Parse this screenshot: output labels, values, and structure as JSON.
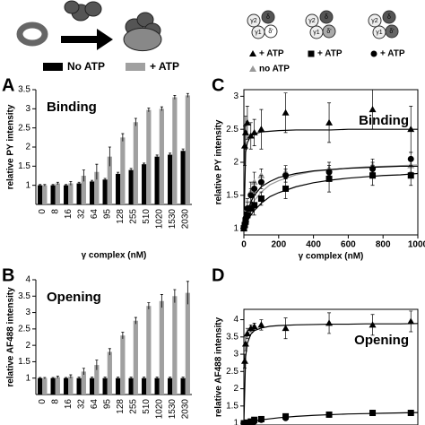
{
  "diagram": {
    "subunits": [
      "δ",
      "γ2",
      "γ1",
      "δ'"
    ],
    "legend": [
      "+ ATP",
      "no ATP",
      "+ ATP",
      "+ ATP"
    ]
  },
  "chart_data": [
    {
      "type": "bar",
      "panel": "A",
      "annotation": "Binding",
      "x_label": "γ complex (nM)",
      "y_label": "relative PY intensity",
      "categories": [
        "0",
        "8",
        "16",
        "32",
        "64",
        "95",
        "128",
        "255",
        "510",
        "1020",
        "1530",
        "2030"
      ],
      "series": [
        {
          "name": "No ATP",
          "color": "#000000",
          "values": [
            1,
            1,
            1,
            1.05,
            1.1,
            1.15,
            1.3,
            1.4,
            1.55,
            1.75,
            1.8,
            1.9
          ],
          "errors": [
            0.02,
            0.02,
            0.02,
            0.03,
            0.03,
            0.03,
            0.04,
            0.04,
            0.03,
            0.04,
            0.04,
            0.05
          ]
        },
        {
          "name": "+ ATP",
          "color": "#a0a0a0",
          "values": [
            1,
            1.05,
            1.05,
            1.25,
            1.35,
            1.75,
            2.25,
            2.65,
            2.97,
            3.0,
            3.3,
            3.35
          ],
          "errors": [
            0.02,
            0.03,
            0.05,
            0.15,
            0.2,
            0.25,
            0.1,
            0.1,
            0.05,
            0.05,
            0.05,
            0.05
          ]
        }
      ],
      "ylim": [
        0.5,
        3.5
      ],
      "yticks": [
        1,
        1.5,
        2,
        2.5,
        3,
        3.5
      ]
    },
    {
      "type": "bar",
      "panel": "B",
      "annotation": "Opening",
      "y_label": "relative AF488 intensity",
      "categories": [
        "0",
        "8",
        "16",
        "32",
        "64",
        "95",
        "128",
        "255",
        "510",
        "1020",
        "1530",
        "2030"
      ],
      "series": [
        {
          "name": "No ATP",
          "color": "#000000",
          "values": [
            1,
            1,
            1,
            1,
            1,
            1,
            1,
            1,
            1,
            1,
            1,
            1
          ],
          "errors": [
            0.02,
            0.02,
            0.02,
            0.03,
            0.03,
            0.03,
            0.03,
            0.03,
            0.03,
            0.03,
            0.03,
            0.03
          ]
        },
        {
          "name": "+ ATP",
          "color": "#a0a0a0",
          "values": [
            1,
            1.03,
            1.05,
            1.2,
            1.4,
            1.8,
            2.3,
            2.75,
            3.2,
            3.35,
            3.5,
            3.6
          ],
          "errors": [
            0.02,
            0.03,
            0.05,
            0.1,
            0.15,
            0.1,
            0.1,
            0.1,
            0.1,
            0.2,
            0.2,
            0.35
          ]
        }
      ],
      "ylim": [
        0.5,
        4
      ],
      "yticks": [
        1,
        1.5,
        2,
        2.5,
        3,
        3.5,
        4
      ]
    },
    {
      "type": "scatter",
      "panel": "C",
      "annotation": "Binding",
      "x_label": "γ complex (nM)",
      "y_label": "relative PY intensity",
      "x": [
        0,
        5,
        10,
        20,
        40,
        60,
        100,
        240,
        490,
        740,
        960
      ],
      "fit_x": [
        0,
        10,
        20,
        40,
        60,
        100,
        150,
        200,
        300,
        400,
        500,
        600,
        700,
        800,
        900,
        1000
      ],
      "series": [
        {
          "name": "+ ATP",
          "marker": "triangle",
          "color": "#000000",
          "values": [
            1,
            2.25,
            2.45,
            2.6,
            2.4,
            2.45,
            2.5,
            2.75,
            2.6,
            2.8,
            2.5
          ],
          "errors": [
            0.02,
            0.3,
            0.25,
            0.25,
            0.2,
            0.2,
            0.3,
            0.3,
            0.3,
            0.3,
            0.35
          ],
          "fit_values": [
            1,
            2.15,
            2.3,
            2.4,
            2.43,
            2.46,
            2.47,
            2.48,
            2.49,
            2.49,
            2.49,
            2.5,
            2.5,
            2.5,
            2.5,
            2.5
          ]
        },
        {
          "name": "no ATP",
          "marker": "triangle",
          "color": "#999999",
          "values": [
            1,
            1.05,
            1.15,
            1.3,
            1.55,
            1.7,
            1.8,
            1.85,
            1.9,
            1.95,
            1.95
          ],
          "errors": [
            0.02,
            0.05,
            0.05,
            0.1,
            0.15,
            0.15,
            0.1,
            0.1,
            0.1,
            0.1,
            0.1
          ],
          "fit_values": [
            1,
            1.11,
            1.19,
            1.32,
            1.42,
            1.55,
            1.66,
            1.72,
            1.81,
            1.86,
            1.89,
            1.91,
            1.93,
            1.94,
            1.95,
            1.96
          ]
        },
        {
          "name": "+ ATP",
          "marker": "square",
          "color": "#000000",
          "values": [
            1,
            1.05,
            1.1,
            1.2,
            1.3,
            1.35,
            1.45,
            1.6,
            1.75,
            1.8,
            1.8
          ],
          "errors": [
            0.02,
            0.05,
            0.05,
            0.1,
            0.1,
            0.15,
            0.1,
            0.15,
            0.2,
            0.15,
            0.15
          ],
          "fit_values": [
            1,
            1.06,
            1.11,
            1.2,
            1.27,
            1.38,
            1.48,
            1.54,
            1.63,
            1.69,
            1.73,
            1.76,
            1.78,
            1.8,
            1.81,
            1.83
          ]
        },
        {
          "name": "+ ATP",
          "marker": "circle",
          "color": "#000000",
          "values": [
            1,
            1.05,
            1.15,
            1.3,
            1.5,
            1.6,
            1.7,
            1.8,
            1.85,
            1.9,
            2.05
          ],
          "errors": [
            0.02,
            0.05,
            0.1,
            0.15,
            0.1,
            0.1,
            0.1,
            0.1,
            0.1,
            0.1,
            0.1
          ],
          "fit_values": [
            1,
            1.14,
            1.25,
            1.4,
            1.5,
            1.63,
            1.71,
            1.77,
            1.83,
            1.87,
            1.89,
            1.91,
            1.92,
            1.93,
            1.94,
            1.94
          ]
        }
      ],
      "xlim": [
        0,
        1000
      ],
      "xticks": [
        0,
        200,
        400,
        600,
        800,
        1000
      ],
      "ylim": [
        0.9,
        3.1
      ],
      "yticks": [
        1,
        1.5,
        2,
        2.5,
        3
      ]
    },
    {
      "type": "scatter",
      "panel": "D",
      "annotation": "Opening",
      "y_label": "relative AF488 intensity",
      "x": [
        0,
        5,
        10,
        20,
        40,
        60,
        100,
        240,
        490,
        740,
        960
      ],
      "fit_x": [
        0,
        10,
        20,
        40,
        60,
        100,
        150,
        200,
        300,
        400,
        500,
        600,
        700,
        800,
        900,
        1000
      ],
      "series": [
        {
          "name": "+ ATP",
          "marker": "triangle",
          "color": "#000000",
          "values": [
            1,
            2.8,
            3.3,
            3.6,
            3.75,
            3.8,
            3.85,
            3.75,
            3.9,
            3.85,
            3.95
          ],
          "errors": [
            0.02,
            0.2,
            0.2,
            0.15,
            0.1,
            0.1,
            0.15,
            0.3,
            0.3,
            0.3,
            0.3
          ],
          "fit_values": [
            1,
            2.93,
            3.32,
            3.58,
            3.68,
            3.76,
            3.81,
            3.83,
            3.85,
            3.86,
            3.87,
            3.87,
            3.88,
            3.88,
            3.88,
            3.89
          ]
        },
        {
          "name": "+ ATP",
          "marker": "square",
          "color": "#000000",
          "values": [
            1,
            1,
            1,
            1.02,
            1.05,
            1.1,
            1.12,
            1.2,
            1.25,
            1.3,
            1.3
          ],
          "errors": [
            0.02,
            0.02,
            0.02,
            0.02,
            0.03,
            0.03,
            0.03,
            0.05,
            0.05,
            0.05,
            0.05
          ]
        },
        {
          "name": "+ ATP",
          "marker": "circle",
          "color": "#000000",
          "values": [
            1,
            1,
            1,
            1,
            1.02,
            1.05,
            1.1,
            1.15,
            1.25,
            1.3,
            1.3
          ],
          "errors": [
            0.02,
            0.02,
            0.02,
            0.02,
            0.03,
            0.03,
            0.03,
            0.05,
            0.05,
            0.05,
            0.05
          ],
          "fit_values": [
            1,
            1.01,
            1.03,
            1.05,
            1.07,
            1.1,
            1.13,
            1.16,
            1.2,
            1.23,
            1.25,
            1.27,
            1.28,
            1.29,
            1.3,
            1.31
          ]
        }
      ],
      "xlim": [
        0,
        1000
      ],
      "ylim": [
        0.95,
        4.3
      ],
      "yticks": [
        1,
        1.5,
        2,
        2.5,
        3,
        3.5,
        4
      ]
    }
  ]
}
